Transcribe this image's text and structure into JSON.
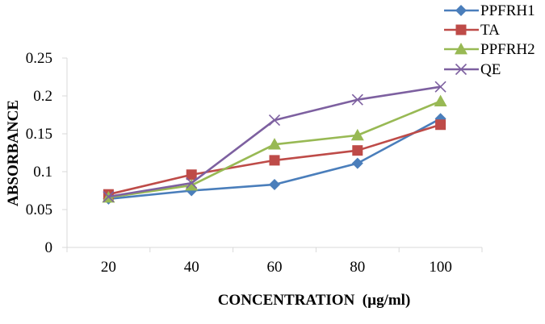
{
  "chart_data": {
    "type": "line",
    "title": "",
    "xlabel": "CONCENTRATION  (µg/ml)",
    "ylabel": "ABSORBANCE",
    "categories": [
      "20",
      "40",
      "60",
      "80",
      "100"
    ],
    "ylim": [
      0,
      0.25
    ],
    "yticks": [
      "0",
      "0.05",
      "0.1",
      "0.15",
      "0.2",
      "0.25"
    ],
    "ytick_values": [
      0,
      0.05,
      0.1,
      0.15,
      0.2,
      0.25
    ],
    "grid": false,
    "legend_position": "top-right",
    "series": [
      {
        "name": "PPFRH1",
        "color": "#4a7ebb",
        "marker": "diamond",
        "values": [
          0.064,
          0.075,
          0.083,
          0.111,
          0.17
        ]
      },
      {
        "name": "TA",
        "color": "#be4b48",
        "marker": "square",
        "values": [
          0.07,
          0.096,
          0.115,
          0.128,
          0.162
        ]
      },
      {
        "name": "PPFRH2",
        "color": "#98b954",
        "marker": "triangle",
        "values": [
          0.066,
          0.082,
          0.136,
          0.148,
          0.193
        ]
      },
      {
        "name": "QE",
        "color": "#7d60a0",
        "marker": "x",
        "values": [
          0.067,
          0.085,
          0.168,
          0.195,
          0.212
        ]
      }
    ]
  }
}
